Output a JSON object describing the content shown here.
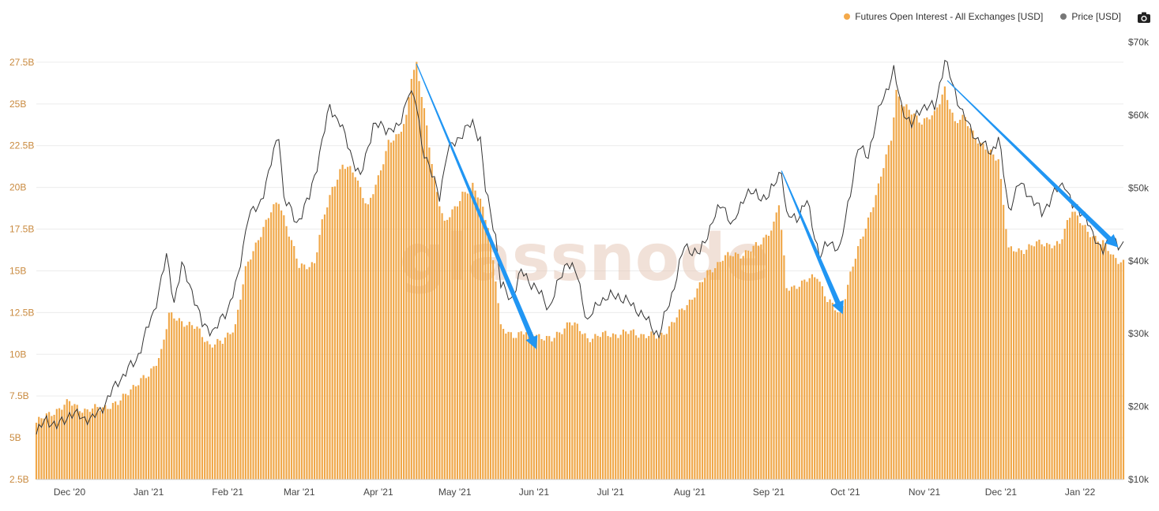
{
  "legend": {
    "items": [
      {
        "label": "Futures Open Interest - All Exchanges [USD]",
        "color": "#f4a94a"
      },
      {
        "label": "Price [USD]",
        "color": "#777777"
      }
    ]
  },
  "watermark": "glassnode",
  "colors": {
    "bar": "#f0a84a",
    "bar_edge": "#e69a35",
    "price_line": "#333333",
    "arrow": "#2196f3",
    "axis_left": "#c98a3f",
    "axis_right": "#444444"
  },
  "chart_data": {
    "type": "bar",
    "x_start": "2020-11-18",
    "x_end": "2022-01-18",
    "x_ticks": [
      "Dec '20",
      "Jan '21",
      "Feb '21",
      "Mar '21",
      "Apr '21",
      "May '21",
      "Jun '21",
      "Jul '21",
      "Aug '21",
      "Sep '21",
      "Oct '21",
      "Nov '21",
      "Dec '21",
      "Jan '22"
    ],
    "x_tick_dates": [
      "2020-12-01",
      "2021-01-01",
      "2021-02-01",
      "2021-03-01",
      "2021-04-01",
      "2021-05-01",
      "2021-06-01",
      "2021-07-01",
      "2021-08-01",
      "2021-09-01",
      "2021-10-01",
      "2021-11-01",
      "2021-12-01",
      "2022-01-01"
    ],
    "y_left_ticks": [
      "2.5B",
      "5B",
      "7.5B",
      "10B",
      "12.5B",
      "15B",
      "17.5B",
      "20B",
      "22.5B",
      "25B",
      "27.5B"
    ],
    "y_left_range": [
      2.5,
      30.0
    ],
    "y_right_ticks": [
      "$10k",
      "$20k",
      "$30k",
      "$40k",
      "$50k",
      "$60k",
      "$70k"
    ],
    "y_right_range": [
      10,
      73
    ],
    "series": [
      {
        "name": "Futures Open Interest - All Exchanges [USD]",
        "unit": "B",
        "points": [
          [
            "2020-11-18",
            5.9
          ],
          [
            "2020-11-25",
            6.6
          ],
          [
            "2020-12-01",
            7.1
          ],
          [
            "2020-12-08",
            6.6
          ],
          [
            "2020-12-15",
            6.9
          ],
          [
            "2020-12-20",
            7.0
          ],
          [
            "2020-12-25",
            8.0
          ],
          [
            "2021-01-01",
            8.7
          ],
          [
            "2021-01-06",
            10.2
          ],
          [
            "2021-01-09",
            12.3
          ],
          [
            "2021-01-13",
            12.1
          ],
          [
            "2021-01-20",
            11.5
          ],
          [
            "2021-01-25",
            10.6
          ],
          [
            "2021-01-30",
            10.7
          ],
          [
            "2021-02-04",
            11.8
          ],
          [
            "2021-02-08",
            15.0
          ],
          [
            "2021-02-13",
            17.0
          ],
          [
            "2021-02-18",
            18.5
          ],
          [
            "2021-02-21",
            19.2
          ],
          [
            "2021-02-24",
            17.8
          ],
          [
            "2021-03-01",
            15.2
          ],
          [
            "2021-03-07",
            15.5
          ],
          [
            "2021-03-10",
            17.8
          ],
          [
            "2021-03-14",
            20.0
          ],
          [
            "2021-03-18",
            21.3
          ],
          [
            "2021-03-23",
            20.8
          ],
          [
            "2021-03-28",
            18.8
          ],
          [
            "2021-04-01",
            20.5
          ],
          [
            "2021-04-05",
            22.8
          ],
          [
            "2021-04-09",
            23.0
          ],
          [
            "2021-04-12",
            24.2
          ],
          [
            "2021-04-14",
            26.8
          ],
          [
            "2021-04-16",
            27.4
          ],
          [
            "2021-04-19",
            24.5
          ],
          [
            "2021-04-23",
            20.5
          ],
          [
            "2021-04-27",
            17.8
          ],
          [
            "2021-05-01",
            18.7
          ],
          [
            "2021-05-04",
            19.7
          ],
          [
            "2021-05-08",
            20.0
          ],
          [
            "2021-05-11",
            19.2
          ],
          [
            "2021-05-14",
            17.8
          ],
          [
            "2021-05-17",
            14.5
          ],
          [
            "2021-05-19",
            11.5
          ],
          [
            "2021-05-24",
            11.2
          ],
          [
            "2021-06-01",
            11.3
          ],
          [
            "2021-06-08",
            10.8
          ],
          [
            "2021-06-15",
            12.0
          ],
          [
            "2021-06-22",
            11.0
          ],
          [
            "2021-07-01",
            11.2
          ],
          [
            "2021-07-10",
            11.3
          ],
          [
            "2021-07-20",
            11.0
          ],
          [
            "2021-07-26",
            12.0
          ],
          [
            "2021-08-01",
            13.2
          ],
          [
            "2021-08-08",
            14.8
          ],
          [
            "2021-08-14",
            15.8
          ],
          [
            "2021-08-21",
            16.0
          ],
          [
            "2021-08-28",
            16.5
          ],
          [
            "2021-09-03",
            17.8
          ],
          [
            "2021-09-05",
            19.0
          ],
          [
            "2021-09-08",
            14.0
          ],
          [
            "2021-09-14",
            14.2
          ],
          [
            "2021-09-20",
            14.8
          ],
          [
            "2021-09-24",
            13.2
          ],
          [
            "2021-09-29",
            12.4
          ],
          [
            "2021-10-03",
            14.8
          ],
          [
            "2021-10-08",
            17.2
          ],
          [
            "2021-10-14",
            20.0
          ],
          [
            "2021-10-19",
            23.0
          ],
          [
            "2021-10-21",
            25.8
          ],
          [
            "2021-10-24",
            24.8
          ],
          [
            "2021-10-31",
            24.0
          ],
          [
            "2021-11-05",
            24.3
          ],
          [
            "2021-11-09",
            26.0
          ],
          [
            "2021-11-13",
            23.8
          ],
          [
            "2021-11-17",
            24.2
          ],
          [
            "2021-11-23",
            22.5
          ],
          [
            "2021-11-30",
            21.8
          ],
          [
            "2021-12-04",
            16.2
          ],
          [
            "2021-12-10",
            16.3
          ],
          [
            "2021-12-17",
            16.7
          ],
          [
            "2021-12-24",
            16.5
          ],
          [
            "2021-12-29",
            18.8
          ],
          [
            "2022-01-04",
            17.2
          ],
          [
            "2022-01-10",
            16.8
          ],
          [
            "2022-01-14",
            15.7
          ],
          [
            "2022-01-16",
            15.6
          ]
        ]
      },
      {
        "name": "Price [USD]",
        "unit": "k",
        "points": [
          [
            "2020-11-18",
            16.2
          ],
          [
            "2020-11-22",
            18.4
          ],
          [
            "2020-11-26",
            17.2
          ],
          [
            "2020-12-01",
            19.0
          ],
          [
            "2020-12-05",
            18.7
          ],
          [
            "2020-12-10",
            18.2
          ],
          [
            "2020-12-16",
            21.0
          ],
          [
            "2020-12-20",
            23.5
          ],
          [
            "2020-12-27",
            26.3
          ],
          [
            "2021-01-03",
            33.0
          ],
          [
            "2021-01-08",
            40.5
          ],
          [
            "2021-01-11",
            34.5
          ],
          [
            "2021-01-14",
            39.3
          ],
          [
            "2021-01-18",
            36.0
          ],
          [
            "2021-01-22",
            31.2
          ],
          [
            "2021-01-27",
            30.4
          ],
          [
            "2021-02-01",
            33.5
          ],
          [
            "2021-02-05",
            37.5
          ],
          [
            "2021-02-09",
            46.4
          ],
          [
            "2021-02-13",
            47.2
          ],
          [
            "2021-02-17",
            52.0
          ],
          [
            "2021-02-21",
            57.5
          ],
          [
            "2021-02-23",
            48.8
          ],
          [
            "2021-02-28",
            45.2
          ],
          [
            "2021-03-05",
            48.7
          ],
          [
            "2021-03-09",
            54.8
          ],
          [
            "2021-03-13",
            61.2
          ],
          [
            "2021-03-17",
            58.9
          ],
          [
            "2021-03-22",
            54.1
          ],
          [
            "2021-03-25",
            51.3
          ],
          [
            "2021-03-30",
            58.7
          ],
          [
            "2021-04-04",
            58.2
          ],
          [
            "2021-04-09",
            58.1
          ],
          [
            "2021-04-13",
            63.5
          ],
          [
            "2021-04-16",
            61.3
          ],
          [
            "2021-04-18",
            56.2
          ],
          [
            "2021-04-22",
            51.7
          ],
          [
            "2021-04-25",
            49.0
          ],
          [
            "2021-04-28",
            54.9
          ],
          [
            "2021-05-03",
            57.2
          ],
          [
            "2021-05-08",
            58.9
          ],
          [
            "2021-05-11",
            56.7
          ],
          [
            "2021-05-13",
            49.7
          ],
          [
            "2021-05-17",
            43.5
          ],
          [
            "2021-05-19",
            36.7
          ],
          [
            "2021-05-23",
            34.7
          ],
          [
            "2021-05-27",
            38.5
          ],
          [
            "2021-06-01",
            36.6
          ],
          [
            "2021-06-07",
            33.6
          ],
          [
            "2021-06-14",
            40.1
          ],
          [
            "2021-06-18",
            37.9
          ],
          [
            "2021-06-22",
            31.6
          ],
          [
            "2021-06-27",
            34.7
          ],
          [
            "2021-07-04",
            35.3
          ],
          [
            "2021-07-12",
            33.2
          ],
          [
            "2021-07-20",
            29.8
          ],
          [
            "2021-07-25",
            35.4
          ],
          [
            "2021-07-30",
            42.0
          ],
          [
            "2021-08-05",
            40.9
          ],
          [
            "2021-08-10",
            45.6
          ],
          [
            "2021-08-14",
            47.8
          ],
          [
            "2021-08-18",
            44.7
          ],
          [
            "2021-08-23",
            49.5
          ],
          [
            "2021-08-28",
            48.9
          ],
          [
            "2021-09-01",
            48.8
          ],
          [
            "2021-09-06",
            52.7
          ],
          [
            "2021-09-08",
            46.0
          ],
          [
            "2021-09-12",
            46.0
          ],
          [
            "2021-09-16",
            48.1
          ],
          [
            "2021-09-21",
            40.6
          ],
          [
            "2021-09-25",
            42.7
          ],
          [
            "2021-09-29",
            41.5
          ],
          [
            "2021-10-02",
            47.7
          ],
          [
            "2021-10-06",
            55.4
          ],
          [
            "2021-10-10",
            54.6
          ],
          [
            "2021-10-15",
            61.7
          ],
          [
            "2021-10-20",
            66.0
          ],
          [
            "2021-10-23",
            61.3
          ],
          [
            "2021-10-27",
            58.5
          ],
          [
            "2021-10-31",
            61.3
          ],
          [
            "2021-11-05",
            61.0
          ],
          [
            "2021-11-09",
            67.6
          ],
          [
            "2021-11-12",
            64.2
          ],
          [
            "2021-11-16",
            60.3
          ],
          [
            "2021-11-19",
            58.0
          ],
          [
            "2021-11-23",
            56.3
          ],
          [
            "2021-11-27",
            54.8
          ],
          [
            "2021-11-30",
            57.0
          ],
          [
            "2021-12-04",
            47.0
          ],
          [
            "2021-12-08",
            50.6
          ],
          [
            "2021-12-12",
            49.2
          ],
          [
            "2021-12-17",
            46.5
          ],
          [
            "2021-12-21",
            48.9
          ],
          [
            "2021-12-26",
            50.8
          ],
          [
            "2021-12-29",
            47.5
          ],
          [
            "2022-01-03",
            46.5
          ],
          [
            "2022-01-06",
            43.2
          ],
          [
            "2022-01-10",
            41.8
          ],
          [
            "2022-01-14",
            43.1
          ],
          [
            "2022-01-17",
            42.2
          ]
        ]
      }
    ],
    "annotations": [
      {
        "type": "arrow",
        "from": [
          "2021-04-16",
          27.4
        ],
        "to": [
          "2021-06-02",
          10.3
        ]
      },
      {
        "type": "arrow",
        "from": [
          "2021-09-06",
          21.0
        ],
        "to": [
          "2021-09-30",
          12.4
        ]
      },
      {
        "type": "arrow",
        "from": [
          "2021-11-10",
          26.4
        ],
        "to": [
          "2022-01-16",
          16.4
        ]
      }
    ],
    "grid": true,
    "legend_position": "top-right"
  }
}
